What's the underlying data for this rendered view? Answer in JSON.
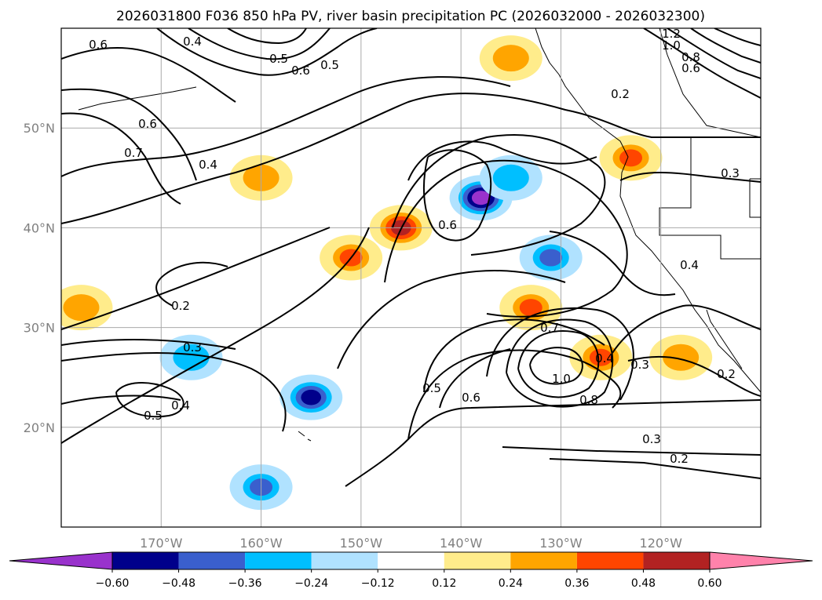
{
  "chart_data": {
    "type": "contour-map",
    "title": "2026031800 F036 850 hPa PV, river basin precipitation PC (2026032000 - 2026032300)",
    "lon_range": [
      -180,
      -110
    ],
    "lat_range": [
      10,
      60
    ],
    "grid": true,
    "x_ticks": [
      "170°W",
      "160°W",
      "150°W",
      "140°W",
      "130°W",
      "120°W"
    ],
    "x_tick_values": [
      -170,
      -160,
      -150,
      -140,
      -130,
      -120
    ],
    "y_ticks": [
      "50°N",
      "40°N",
      "30°N",
      "20°N"
    ],
    "y_tick_values": [
      50,
      40,
      30,
      20
    ],
    "colorbar": {
      "tick_labels": [
        "−0.60",
        "−0.48",
        "−0.36",
        "−0.24",
        "−0.12",
        "0.12",
        "0.24",
        "0.36",
        "0.48",
        "0.60"
      ],
      "boundaries": [
        -0.6,
        -0.48,
        -0.36,
        -0.24,
        -0.12,
        0.12,
        0.24,
        0.36,
        0.48,
        0.6
      ],
      "colors": [
        "#9932cc",
        "#00008b",
        "#3a5fcd",
        "#00bfff",
        "#b0e2ff",
        "#ffffff",
        "#ffec8b",
        "#ffa500",
        "#ff4500",
        "#b22222",
        "#ff82ab"
      ],
      "extend": "both"
    },
    "contour_labels": [
      "0.6",
      "0.7",
      "0.6",
      "0.5",
      "0.4",
      "0.6",
      "0.4",
      "0.6",
      "0.5",
      "0.2",
      "0.2",
      "0.3",
      "0.5",
      "0.4",
      "0.5",
      "0.6",
      "1.0",
      "0.8",
      "0.7",
      "0.4",
      "0.3",
      "0.2",
      "0.3",
      "0.2",
      "0.3",
      "0.4",
      "1.2",
      "1.0",
      "0.8",
      "0.6"
    ],
    "precip_blobs": [
      {
        "lon": -151,
        "lat": 37,
        "value": 0.4
      },
      {
        "lon": -146,
        "lat": 40,
        "value": 0.5
      },
      {
        "lon": -160,
        "lat": 45,
        "value": 0.3
      },
      {
        "lon": -178,
        "lat": 32,
        "value": 0.3
      },
      {
        "lon": -138,
        "lat": 43,
        "value": -0.6
      },
      {
        "lon": -135,
        "lat": 45,
        "value": -0.3
      },
      {
        "lon": -131,
        "lat": 37,
        "value": -0.4
      },
      {
        "lon": -167,
        "lat": 27,
        "value": -0.3
      },
      {
        "lon": -155,
        "lat": 23,
        "value": -0.5
      },
      {
        "lon": -160,
        "lat": 14,
        "value": -0.4
      },
      {
        "lon": -133,
        "lat": 32,
        "value": 0.4
      },
      {
        "lon": -126,
        "lat": 27,
        "value": 0.4
      },
      {
        "lon": -123,
        "lat": 47,
        "value": 0.4
      },
      {
        "lon": -135,
        "lat": 57,
        "value": 0.3
      },
      {
        "lon": -118,
        "lat": 27,
        "value": 0.3
      }
    ]
  }
}
